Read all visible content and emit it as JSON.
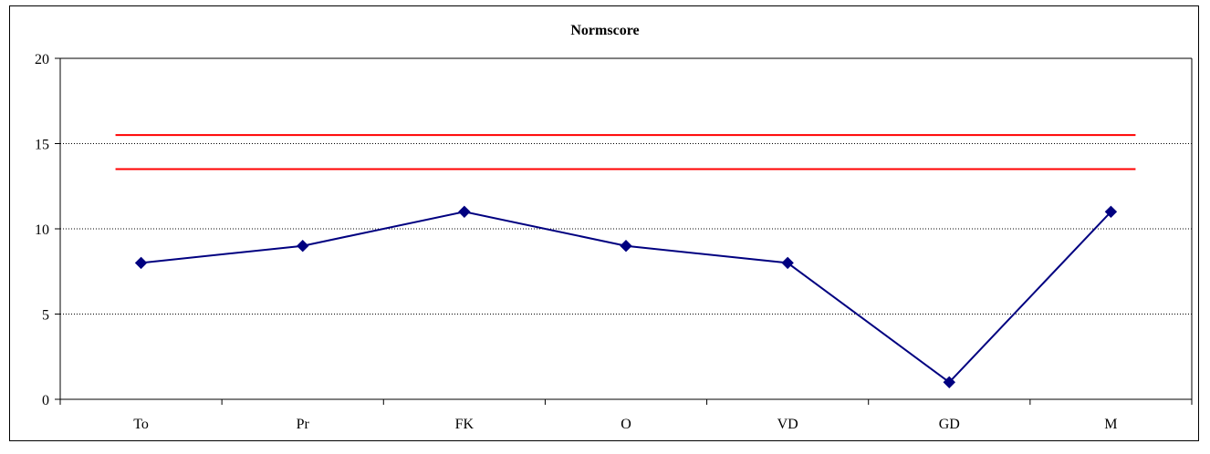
{
  "chart_data": {
    "type": "line",
    "title": "Normscore",
    "xlabel": "",
    "ylabel": "",
    "categories": [
      "To",
      "Pr",
      "FK",
      "O",
      "VD",
      "GD",
      "M"
    ],
    "series": [
      {
        "values": [
          8,
          9,
          11,
          9,
          8,
          1,
          11
        ],
        "color": "#000080",
        "marker": "diamond"
      }
    ],
    "reference_lines": [
      {
        "y": 15.5,
        "color": "#ff0000"
      },
      {
        "y": 13.5,
        "color": "#ff0000"
      }
    ],
    "ylim": [
      0,
      20
    ],
    "yticks": [
      "0",
      "5",
      "10",
      "15",
      "20"
    ],
    "grid": "horizontal-dotted",
    "legend": "none"
  }
}
